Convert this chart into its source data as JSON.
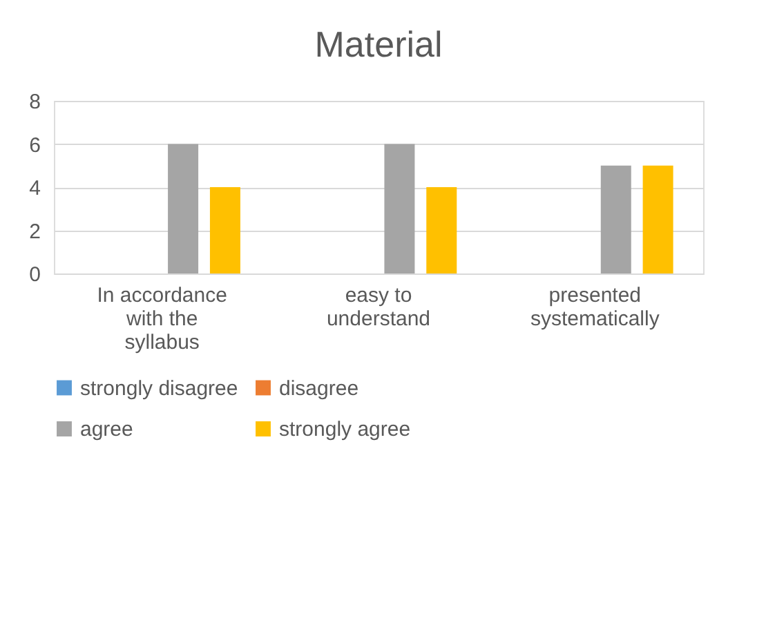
{
  "chart_data": {
    "type": "bar",
    "title": "Material",
    "categories": [
      "In accordance with the syllabus",
      "easy to understand",
      "presented systematically"
    ],
    "series": [
      {
        "name": "strongly disagree",
        "color": "#5b9bd5",
        "values": [
          0,
          0,
          0
        ]
      },
      {
        "name": "disagree",
        "color": "#ed7d31",
        "values": [
          0,
          0,
          0
        ]
      },
      {
        "name": "agree",
        "color": "#a5a5a5",
        "values": [
          6,
          6,
          5
        ]
      },
      {
        "name": "strongly agree",
        "color": "#ffc000",
        "values": [
          4,
          4,
          5
        ]
      }
    ],
    "ylim": [
      0,
      8
    ],
    "yticks": [
      0,
      2,
      4,
      6,
      8
    ],
    "grid": "y",
    "legend": "bottom"
  }
}
